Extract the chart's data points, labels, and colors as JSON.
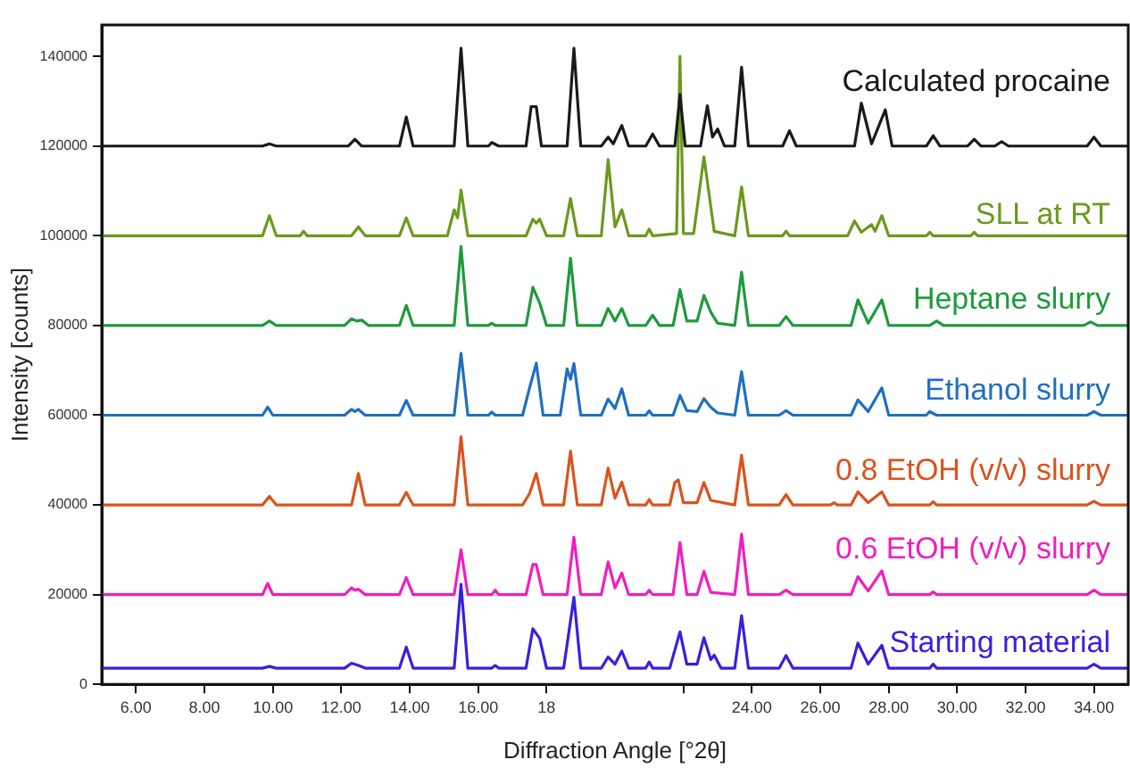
{
  "chart_data": {
    "type": "line",
    "xlabel": "Diffraction Angle [°2θ]",
    "ylabel": "Intensity [counts]",
    "xlim": [
      5,
      35
    ],
    "ylim": [
      0,
      147000
    ],
    "xticks": [
      {
        "value": 6,
        "label": "6.00"
      },
      {
        "value": 8,
        "label": "8.00"
      },
      {
        "value": 10,
        "label": "10.00"
      },
      {
        "value": 12,
        "label": "12.00"
      },
      {
        "value": 14,
        "label": "14.00"
      },
      {
        "value": 16,
        "label": "16.00"
      },
      {
        "value": 18,
        "label": "18"
      },
      {
        "value": 22,
        "label": null
      },
      {
        "value": 24,
        "label": "24.00"
      },
      {
        "value": 26,
        "label": "26.00"
      },
      {
        "value": 28,
        "label": "28.00"
      },
      {
        "value": 30,
        "label": "30.00"
      },
      {
        "value": 32,
        "label": "32.00"
      },
      {
        "value": 34,
        "label": "34.00"
      }
    ],
    "yticks": [
      0,
      20000,
      40000,
      60000,
      80000,
      100000,
      120000,
      140000
    ],
    "grid": false,
    "legend": false,
    "marker": "none",
    "line_style": "solid",
    "series": [
      {
        "name": "Calculated procaine",
        "color": "#1a1a1a",
        "x": [
          5,
          9.7,
          9.9,
          10.1,
          12.2,
          12.4,
          12.6,
          13.7,
          13.9,
          14.1,
          15.3,
          15.5,
          15.7,
          16.3,
          16.4,
          16.6,
          17.4,
          17.55,
          17.7,
          17.85,
          18.6,
          18.8,
          19.0,
          19.6,
          19.8,
          19.95,
          20.2,
          20.4,
          20.9,
          21.1,
          21.3,
          21.75,
          21.9,
          22.05,
          22.5,
          22.7,
          22.85,
          23.0,
          23.2,
          23.5,
          23.7,
          23.9,
          24.9,
          25.1,
          25.3,
          27.0,
          27.2,
          27.5,
          27.9,
          28.1,
          29.1,
          29.3,
          29.5,
          30.3,
          30.5,
          30.7,
          31.1,
          31.3,
          31.5,
          33.8,
          34.0,
          34.2,
          35
        ],
        "values": [
          120000,
          120000,
          120500,
          120000,
          120000,
          121500,
          120000,
          120000,
          126500,
          120000,
          120000,
          141800,
          120000,
          120000,
          120800,
          120000,
          120000,
          128800,
          128800,
          120000,
          120000,
          141800,
          120000,
          120000,
          122000,
          120500,
          124600,
          120000,
          120000,
          122700,
          120000,
          120000,
          131500,
          120000,
          120000,
          129000,
          122000,
          123800,
          120000,
          120000,
          137600,
          120000,
          120000,
          123400,
          120000,
          120000,
          129600,
          120500,
          128100,
          120000,
          120000,
          122300,
          120000,
          120000,
          121500,
          120000,
          120000,
          121000,
          120000,
          120000,
          122000,
          120000,
          120000
        ]
      },
      {
        "name": "SLL at RT",
        "color": "#6a9a1c",
        "x": [
          5,
          9.7,
          9.9,
          10.1,
          10.8,
          10.9,
          11.0,
          12.3,
          12.5,
          12.7,
          13.7,
          13.9,
          14.1,
          15.1,
          15.3,
          15.4,
          15.5,
          15.7,
          17.4,
          17.6,
          17.7,
          17.8,
          18.0,
          18.5,
          18.7,
          18.9,
          19.6,
          19.8,
          20.0,
          20.2,
          20.4,
          20.9,
          21.0,
          21.1,
          21.8,
          21.9,
          22.0,
          22.3,
          22.6,
          22.9,
          23.5,
          23.7,
          23.9,
          24.9,
          25.0,
          25.1,
          26.8,
          27.0,
          27.2,
          27.5,
          27.6,
          27.8,
          28.0,
          29.1,
          29.2,
          29.3,
          30.4,
          30.5,
          30.6,
          35
        ],
        "values": [
          100000,
          100000,
          104500,
          100000,
          100000,
          101000,
          100000,
          100000,
          102000,
          100000,
          100000,
          104000,
          100000,
          100000,
          105800,
          104000,
          110200,
          100000,
          100000,
          103700,
          102800,
          103700,
          100000,
          100000,
          108300,
          100000,
          100000,
          117000,
          102000,
          105800,
          100000,
          100000,
          101500,
          100000,
          100500,
          140000,
          100500,
          100500,
          117600,
          101000,
          100000,
          110900,
          100000,
          100000,
          101000,
          100000,
          100000,
          103300,
          100800,
          102500,
          101000,
          104500,
          100000,
          100000,
          100800,
          100000,
          100000,
          100800,
          100000,
          100000
        ]
      },
      {
        "name": "Heptane slurry",
        "color": "#1e9a3c",
        "x": [
          5,
          9.7,
          9.9,
          10.1,
          12.1,
          12.3,
          12.45,
          12.6,
          12.8,
          13.7,
          13.9,
          14.1,
          15.3,
          15.5,
          15.7,
          16.3,
          16.4,
          16.5,
          17.4,
          17.6,
          17.8,
          18.0,
          18.5,
          18.7,
          18.9,
          19.6,
          19.8,
          20.0,
          20.2,
          20.4,
          20.9,
          21.1,
          21.3,
          21.7,
          21.9,
          22.1,
          22.4,
          22.6,
          22.8,
          23.0,
          23.5,
          23.7,
          23.9,
          24.8,
          25.0,
          25.2,
          26.9,
          27.1,
          27.4,
          27.8,
          28.0,
          29.2,
          29.4,
          29.6,
          33.7,
          33.9,
          34.1,
          35
        ],
        "values": [
          80000,
          80000,
          81000,
          80000,
          80000,
          81500,
          81000,
          81200,
          80000,
          80000,
          84500,
          80000,
          80000,
          97600,
          80000,
          80000,
          80500,
          80000,
          80000,
          88500,
          85000,
          80000,
          80000,
          95000,
          80000,
          80000,
          83800,
          81000,
          83800,
          80000,
          80000,
          82300,
          80000,
          80000,
          88000,
          81000,
          81000,
          86700,
          83000,
          80500,
          80000,
          91900,
          80000,
          80000,
          82000,
          80000,
          80000,
          85700,
          80500,
          85700,
          80000,
          80000,
          81000,
          80000,
          80000,
          80800,
          80000,
          80000
        ]
      },
      {
        "name": "Ethanol slurry",
        "color": "#1f6fc0",
        "x": [
          5,
          9.7,
          9.85,
          10.0,
          12.1,
          12.3,
          12.4,
          12.5,
          12.7,
          13.7,
          13.9,
          14.1,
          15.3,
          15.5,
          15.7,
          16.3,
          16.4,
          16.5,
          17.3,
          17.5,
          17.7,
          17.9,
          18.4,
          18.6,
          18.7,
          18.8,
          19.0,
          19.6,
          19.8,
          20.0,
          20.2,
          20.4,
          20.9,
          21.0,
          21.1,
          21.7,
          21.9,
          22.1,
          22.4,
          22.6,
          22.8,
          23.0,
          23.5,
          23.7,
          23.9,
          24.8,
          25.0,
          25.2,
          26.9,
          27.1,
          27.4,
          27.8,
          28.0,
          29.1,
          29.2,
          29.4,
          33.8,
          34.0,
          34.2,
          35
        ],
        "values": [
          60000,
          60000,
          61800,
          60000,
          60000,
          61300,
          60800,
          61300,
          60000,
          60000,
          63300,
          60000,
          60000,
          73800,
          60000,
          60000,
          60700,
          60000,
          60000,
          66000,
          71600,
          60000,
          60000,
          70300,
          68000,
          71500,
          60000,
          60000,
          63600,
          61500,
          65900,
          60000,
          60000,
          61000,
          60000,
          60000,
          64400,
          61000,
          60800,
          63700,
          61800,
          60500,
          60000,
          69700,
          60000,
          60000,
          61000,
          60000,
          60000,
          63400,
          60800,
          66100,
          60000,
          60000,
          60800,
          60000,
          60000,
          60800,
          60000,
          60000
        ]
      },
      {
        "name": "0.8 EtOH (v/v) slurry",
        "color": "#d9531e",
        "x": [
          5,
          9.7,
          9.9,
          10.1,
          12.3,
          12.5,
          12.7,
          13.7,
          13.9,
          14.1,
          15.3,
          15.5,
          15.7,
          17.3,
          17.5,
          17.7,
          17.9,
          18.5,
          18.7,
          18.9,
          19.6,
          19.8,
          20.0,
          20.2,
          20.4,
          20.9,
          21.0,
          21.1,
          21.6,
          21.75,
          21.85,
          22.0,
          22.4,
          22.6,
          22.8,
          23.5,
          23.7,
          23.9,
          24.8,
          25.0,
          25.2,
          26.3,
          26.4,
          26.5,
          26.9,
          27.1,
          27.4,
          27.8,
          28.0,
          29.2,
          29.3,
          29.4,
          33.8,
          34.0,
          34.2,
          35
        ],
        "values": [
          40000,
          40000,
          41900,
          40000,
          40000,
          47000,
          40000,
          40000,
          42800,
          40000,
          40000,
          55200,
          40000,
          40000,
          42500,
          47000,
          40000,
          40000,
          52000,
          40000,
          40000,
          48200,
          41500,
          45100,
          40000,
          40000,
          41200,
          40000,
          40000,
          45000,
          45600,
          40500,
          40500,
          45000,
          41000,
          40000,
          51100,
          40000,
          40000,
          42300,
          40000,
          40000,
          40500,
          40000,
          40000,
          42900,
          40500,
          42900,
          40000,
          40000,
          40700,
          40000,
          40000,
          40800,
          40000,
          40000
        ]
      },
      {
        "name": "0.6 EtOH (v/v) slurry",
        "color": "#f01ec0",
        "x": [
          5,
          9.7,
          9.85,
          10.0,
          12.1,
          12.3,
          12.4,
          12.5,
          12.7,
          13.7,
          13.9,
          14.1,
          15.3,
          15.5,
          15.7,
          16.4,
          16.5,
          16.6,
          17.4,
          17.6,
          17.7,
          17.9,
          18.6,
          18.8,
          19.0,
          19.6,
          19.8,
          20.0,
          20.2,
          20.4,
          20.9,
          21.0,
          21.1,
          21.7,
          21.9,
          22.1,
          22.4,
          22.6,
          22.8,
          23.5,
          23.7,
          23.9,
          24.8,
          25.0,
          25.2,
          26.9,
          27.1,
          27.4,
          27.8,
          28.0,
          29.2,
          29.3,
          29.4,
          33.8,
          34.0,
          34.2,
          35
        ],
        "values": [
          20000,
          20000,
          22500,
          20000,
          20000,
          21500,
          21000,
          21200,
          20000,
          20000,
          23800,
          20000,
          20000,
          30000,
          20000,
          20000,
          21000,
          20000,
          20000,
          26700,
          26700,
          20000,
          20000,
          32800,
          20000,
          20000,
          27300,
          21500,
          24800,
          20000,
          20000,
          21000,
          20000,
          20000,
          31600,
          20000,
          20000,
          25200,
          20500,
          20000,
          33500,
          20000,
          20000,
          21000,
          20000,
          20000,
          24000,
          20800,
          25300,
          20000,
          20000,
          20600,
          20000,
          20000,
          21000,
          20000,
          20000
        ]
      },
      {
        "name": "Starting material",
        "color": "#3a1ee0",
        "x": [
          5,
          9.7,
          9.9,
          10.1,
          12.1,
          12.3,
          12.5,
          12.7,
          13.7,
          13.9,
          14.1,
          15.3,
          15.5,
          15.7,
          16.4,
          16.5,
          16.6,
          17.4,
          17.6,
          17.8,
          18.0,
          18.5,
          18.8,
          19.0,
          19.6,
          19.8,
          20.0,
          20.2,
          20.4,
          20.9,
          21.0,
          21.1,
          21.6,
          21.9,
          22.1,
          22.4,
          22.6,
          22.8,
          22.9,
          23.1,
          23.5,
          23.7,
          23.9,
          24.8,
          25.0,
          25.2,
          26.9,
          27.1,
          27.4,
          27.8,
          28.0,
          29.2,
          29.3,
          29.4,
          33.8,
          34.0,
          34.2,
          35
        ],
        "values": [
          3600,
          3600,
          4000,
          3600,
          3600,
          4700,
          4200,
          3600,
          3600,
          8300,
          3600,
          3600,
          22300,
          3600,
          3600,
          4200,
          3600,
          3600,
          12400,
          10200,
          3600,
          3600,
          19400,
          3600,
          3600,
          6100,
          4500,
          7400,
          3600,
          3600,
          5000,
          3600,
          3600,
          11700,
          4500,
          4500,
          10400,
          5500,
          6500,
          3600,
          3600,
          15300,
          3600,
          3600,
          6400,
          3600,
          3600,
          9200,
          4500,
          8700,
          3600,
          3600,
          4500,
          3600,
          3600,
          4500,
          3600,
          3600
        ]
      }
    ]
  }
}
